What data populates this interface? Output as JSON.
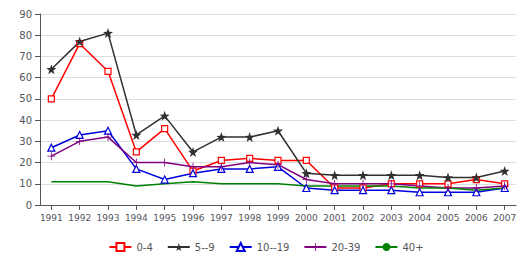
{
  "chart_data": {
    "type": "line",
    "x": [
      1991,
      1992,
      1993,
      1994,
      1995,
      1996,
      1997,
      1998,
      1999,
      2000,
      2001,
      2002,
      2003,
      2004,
      2005,
      2006,
      2007
    ],
    "xlim": [
      1990.6,
      2007.4
    ],
    "xticks": [
      1991,
      1992,
      1993,
      1994,
      1995,
      1996,
      1997,
      1998,
      1999,
      2000,
      2001,
      2002,
      2003,
      2004,
      2005,
      2006,
      2007
    ],
    "ylim": [
      0,
      90
    ],
    "yticks": [
      0,
      10,
      20,
      30,
      40,
      50,
      60,
      70,
      80,
      90
    ],
    "grid": true,
    "legend": "bottom",
    "series": [
      {
        "name": "0-4",
        "color": "#ff0000",
        "marker": "square",
        "values": [
          50,
          76,
          63,
          25,
          36,
          16,
          21,
          22,
          21,
          21,
          8,
          8,
          10,
          10,
          10,
          12,
          10
        ]
      },
      {
        "name": "5--9",
        "color": "#303030",
        "marker": "star",
        "values": [
          64,
          77,
          81,
          33,
          42,
          25,
          32,
          32,
          35,
          15,
          14,
          14,
          14,
          14,
          13,
          13,
          16
        ]
      },
      {
        "name": "10--19",
        "color": "#0000dd",
        "marker": "triangle",
        "values": [
          27,
          33,
          35,
          17,
          12,
          15,
          17,
          17,
          18,
          8,
          7,
          7,
          7,
          6,
          6,
          6,
          8
        ]
      },
      {
        "name": "20-39",
        "color": "#800080",
        "marker": "plus",
        "values": [
          23,
          30,
          32,
          20,
          20,
          18,
          18,
          20,
          19,
          12,
          10,
          10,
          10,
          9,
          8,
          8,
          9
        ]
      },
      {
        "name": "40+",
        "color": "#008000",
        "marker": "none",
        "values": [
          11,
          11,
          11,
          9,
          10,
          11,
          10,
          10,
          10,
          9,
          9,
          9,
          9,
          8,
          8,
          7,
          8
        ]
      }
    ]
  }
}
